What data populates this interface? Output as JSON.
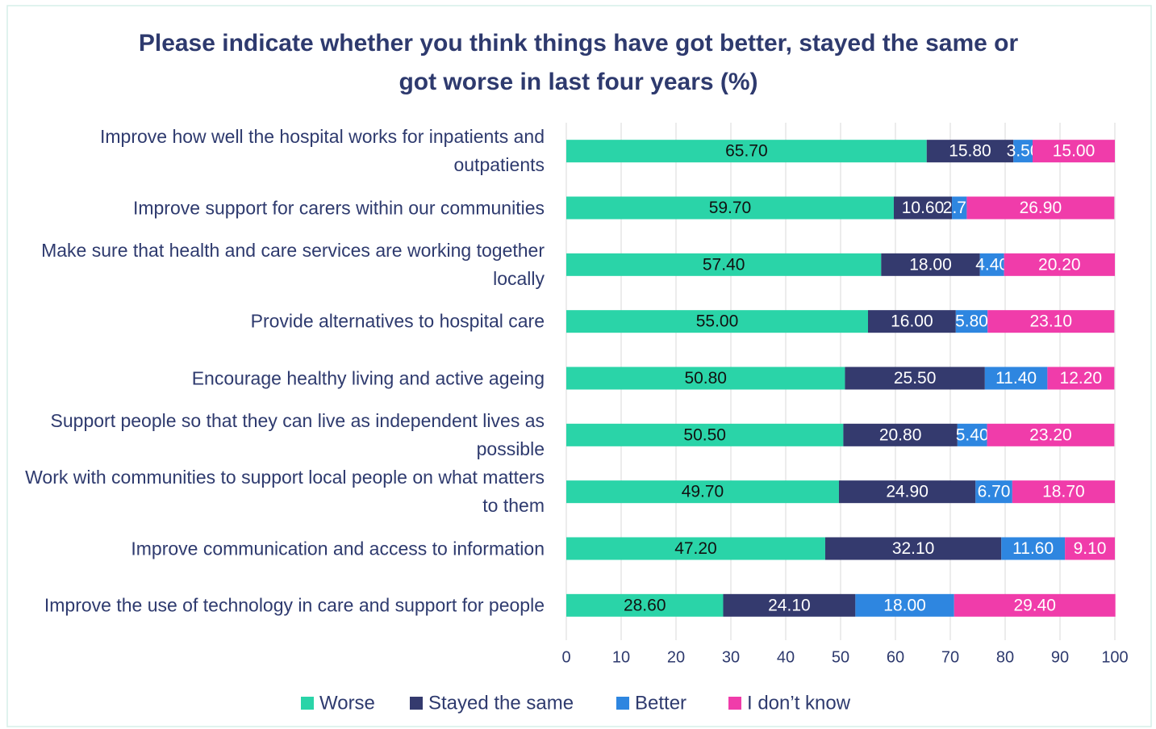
{
  "chart_data": {
    "type": "stacked_barh",
    "title": "Please indicate whether you think things have got better, stayed the same or got worse in last four years (%)",
    "categories": [
      "Improve how well the hospital works for inpatients and outpatients",
      "Improve support for carers within our communities",
      "Make sure that health and care services are working together locally",
      "Provide alternatives to hospital care",
      "Encourage healthy living and active ageing",
      "Support people so that they can live as independent lives as possible",
      "Work with communities to support local people on what matters to them",
      "Improve communication and access to information",
      "Improve the use of technology in care and support for people"
    ],
    "series": [
      {
        "name": "Worse",
        "color": "#2ad4a8",
        "values": [
          65.7,
          59.7,
          57.4,
          55,
          50.8,
          50.5,
          49.7,
          47.2,
          28.6
        ],
        "value_labels": [
          "65.70",
          "59.70",
          "57.40",
          "55.00",
          "50.80",
          "50.50",
          "49.70",
          "47.20",
          "28.60"
        ]
      },
      {
        "name": "Stayed the same",
        "color": "#343a6e",
        "values": [
          15.8,
          10.6,
          18,
          16,
          25.5,
          20.8,
          24.9,
          32.1,
          24.1
        ],
        "value_labels": [
          "15.80",
          "10.60",
          "18.00",
          "16.00",
          "25.50",
          "20.80",
          "24.90",
          "32.10",
          "24.10"
        ]
      },
      {
        "name": "Better",
        "color": "#2e86e0",
        "values": [
          3.5,
          2.7,
          4.4,
          5.8,
          11.4,
          5.4,
          6.7,
          11.6,
          18
        ],
        "value_labels": [
          "3.50",
          "2.70",
          "4.40",
          "5.80",
          "11.40",
          "5.40",
          "6.70",
          "11.60",
          "18.00"
        ]
      },
      {
        "name": "I don’t know",
        "color": "#f03caa",
        "values": [
          15,
          26.9,
          20.2,
          23.1,
          12.2,
          23.2,
          18.7,
          9.1,
          29.4
        ],
        "value_labels": [
          "15.00",
          "26.90",
          "20.20",
          "23.10",
          "12.20",
          "23.20",
          "18.70",
          "9.10",
          "29.40"
        ]
      }
    ],
    "xlim": [
      0,
      100
    ],
    "xticks": [
      0,
      10,
      20,
      30,
      40,
      50,
      60,
      70,
      80,
      90,
      100
    ],
    "grid": true
  }
}
